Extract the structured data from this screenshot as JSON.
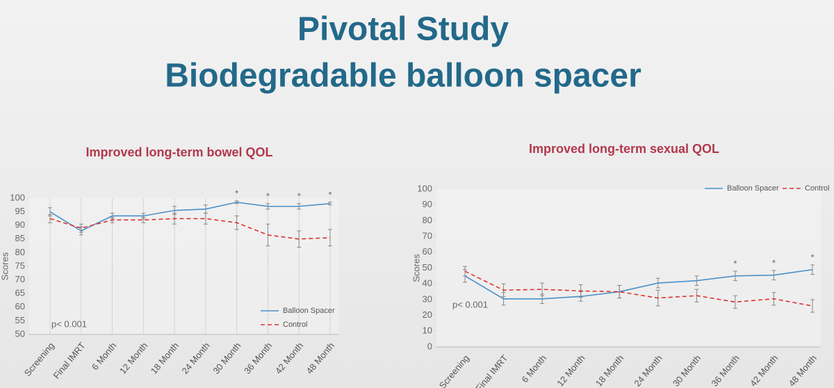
{
  "slide": {
    "title": [
      "Pivotal Study",
      "Biodegradable balloon spacer"
    ]
  },
  "chart_data": [
    {
      "type": "line",
      "title": "Improved long-term bowel QOL",
      "y_label": "Scores",
      "annotation": "p< 0.001",
      "categories": [
        "Screening",
        "Final IMRT",
        "6 Month",
        "12 Month",
        "18 Month",
        "24 Month",
        "30 Month",
        "36 Month",
        "42 Month",
        "48 Month"
      ],
      "significance": [
        null,
        null,
        null,
        null,
        null,
        null,
        "*",
        "*",
        "*",
        "*"
      ],
      "ylim": [
        50,
        100
      ],
      "yticks": [
        50,
        55,
        60,
        65,
        70,
        75,
        80,
        85,
        90,
        95,
        100
      ],
      "grid": true,
      "legend": "bottom-right",
      "series": [
        {
          "name": "Balloon Spacer",
          "color": "#4a90c8",
          "dash": false,
          "values": [
            95,
            88,
            93.5,
            93.5,
            95.5,
            96,
            98.5,
            97,
            97,
            98
          ],
          "errors": [
            1.5,
            1.5,
            1,
            1,
            1.5,
            1.5,
            0.5,
            1,
            1,
            0.5
          ]
        },
        {
          "name": "Control",
          "color": "#e03030",
          "dash": true,
          "values": [
            92.5,
            89,
            92,
            92,
            92.5,
            92.5,
            91,
            86.5,
            85,
            85.5
          ],
          "errors": [
            1.5,
            1.5,
            1,
            1,
            2,
            2,
            2.5,
            4,
            3,
            3
          ]
        }
      ]
    },
    {
      "type": "line",
      "title": "Improved long-term sexual QOL",
      "y_label": "Scores",
      "annotation": "p< 0.001",
      "categories": [
        "Screening",
        "Final IMRT",
        "6 Month",
        "12 Month",
        "18 Month",
        "24 Month",
        "30 Month",
        "36 Month",
        "42 Month",
        "48 Month"
      ],
      "significance": [
        null,
        null,
        null,
        null,
        null,
        null,
        null,
        "*",
        "*",
        "*"
      ],
      "ylim": [
        0,
        100
      ],
      "yticks": [
        0,
        10,
        20,
        30,
        40,
        50,
        60,
        70,
        80,
        90,
        100
      ],
      "grid": false,
      "legend": "top-right",
      "series": [
        {
          "name": "Balloon Spacer",
          "color": "#4a90c8",
          "dash": false,
          "values": [
            45,
            30.5,
            30.5,
            32,
            35,
            40.5,
            42,
            45,
            45.5,
            49
          ],
          "errors": [
            4,
            4,
            3,
            3,
            4,
            3,
            3,
            3,
            3,
            3
          ]
        },
        {
          "name": "Control",
          "color": "#e03030",
          "dash": true,
          "values": [
            48,
            36,
            36.5,
            35.5,
            35,
            31,
            32.5,
            28.5,
            30.5,
            26
          ],
          "errors": [
            3,
            4,
            4,
            4,
            4,
            5,
            4,
            4,
            4,
            4
          ]
        }
      ]
    }
  ]
}
